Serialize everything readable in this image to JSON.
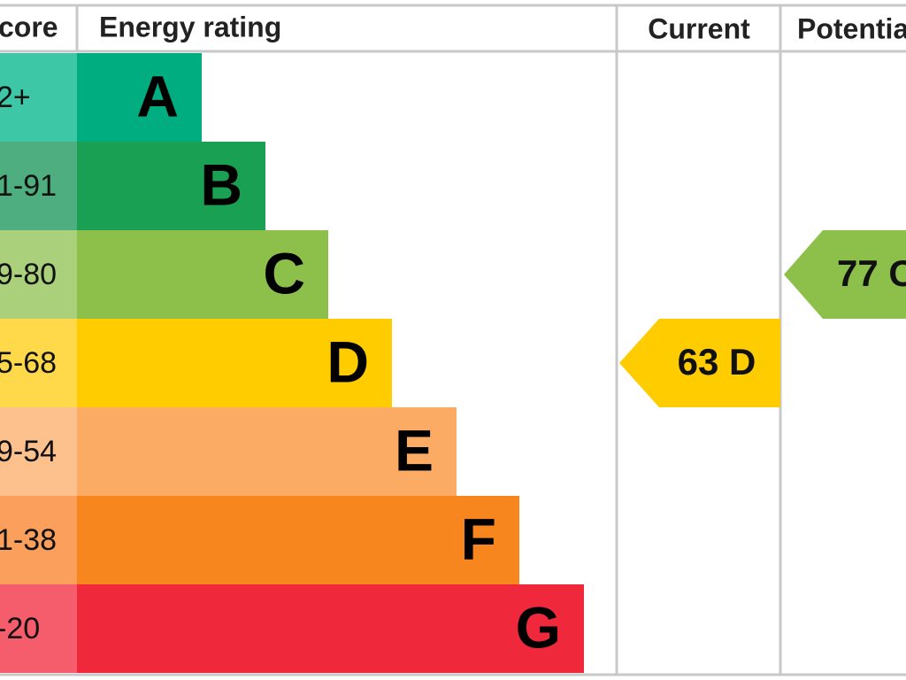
{
  "header": {
    "score": "core",
    "rating": "Energy rating",
    "current": "Current",
    "potential": "Potentia"
  },
  "bands": [
    {
      "score": "2+",
      "letter": "A"
    },
    {
      "score": "1-91",
      "letter": "B"
    },
    {
      "score": "9-80",
      "letter": "C"
    },
    {
      "score": "5-68",
      "letter": "D"
    },
    {
      "score": "9-54",
      "letter": "E"
    },
    {
      "score": "1-38",
      "letter": "F"
    },
    {
      "score": "-20",
      "letter": "G"
    }
  ],
  "current": "63 D",
  "potential": "77 C"
}
